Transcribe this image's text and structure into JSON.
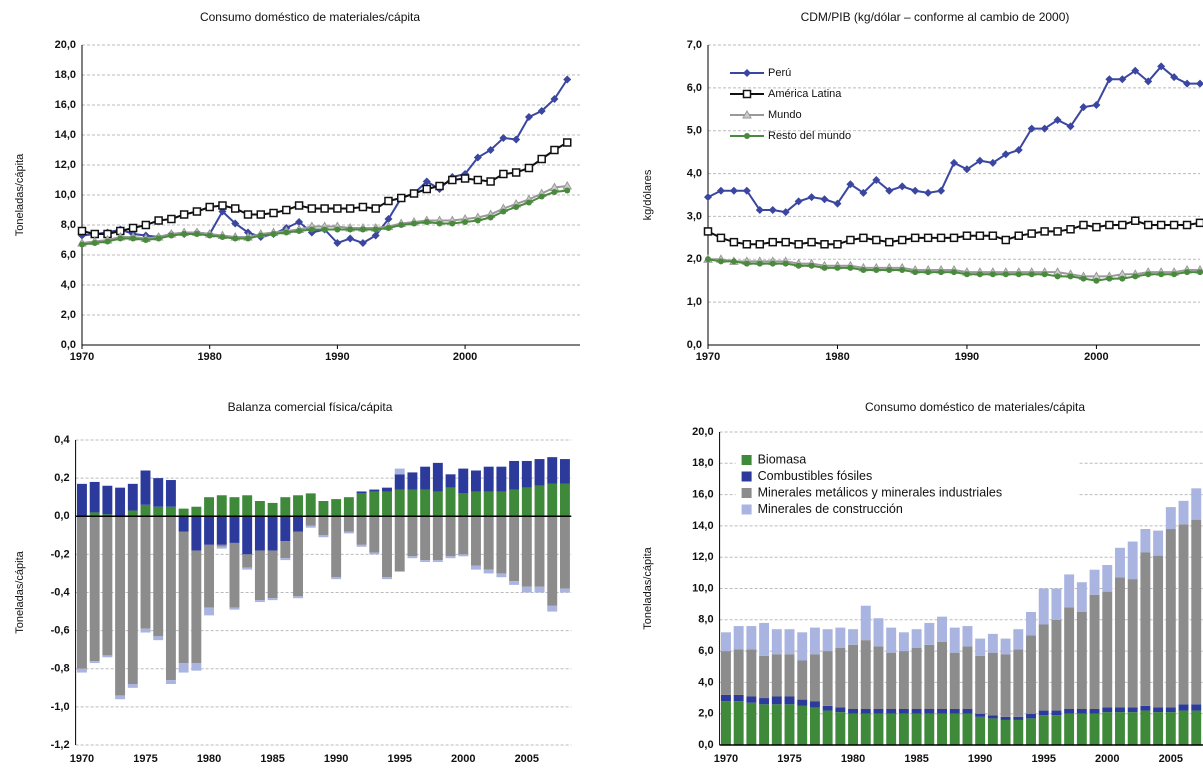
{
  "chart_data": [
    {
      "type": "line",
      "title": "Consumo doméstico de materiales/cápita",
      "y_label": "Toneladas/cápita",
      "x": [
        1970,
        1971,
        1972,
        1973,
        1974,
        1975,
        1976,
        1977,
        1978,
        1979,
        1980,
        1981,
        1982,
        1983,
        1984,
        1985,
        1986,
        1987,
        1988,
        1989,
        1990,
        1991,
        1992,
        1993,
        1994,
        1995,
        1996,
        1997,
        1998,
        1999,
        2000,
        2001,
        2002,
        2003,
        2004,
        2005,
        2006,
        2007,
        2008
      ],
      "xlim": [
        1970,
        2009
      ],
      "xticks": [
        1970,
        1980,
        1990,
        2000
      ],
      "ylim": [
        0,
        20
      ],
      "yticks": [
        {
          "value": 0,
          "label": "0,0"
        },
        {
          "value": 2,
          "label": "2,0"
        },
        {
          "value": 4,
          "label": "4,0"
        },
        {
          "value": 6,
          "label": "6,0"
        },
        {
          "value": 8,
          "label": "8,0"
        },
        {
          "value": 10,
          "label": "10,0"
        },
        {
          "value": 12,
          "label": "12,0"
        },
        {
          "value": 14,
          "label": "14,0"
        },
        {
          "value": 16,
          "label": "16,0"
        },
        {
          "value": 18,
          "label": "18,0"
        },
        {
          "value": 20,
          "label": "20,0"
        }
      ],
      "grid": true,
      "series": [
        {
          "color": "#3a46a0",
          "marker": "diamond",
          "values": [
            7.3,
            7.4,
            7.5,
            7.7,
            7.4,
            7.3,
            7.2,
            7.4,
            7.4,
            7.5,
            7.4,
            8.9,
            8.1,
            7.5,
            7.2,
            7.4,
            7.8,
            8.2,
            7.5,
            7.7,
            6.8,
            7.1,
            6.8,
            7.3,
            8.4,
            9.8,
            10.1,
            10.9,
            10.4,
            11.2,
            11.4,
            12.5,
            13.0,
            13.8,
            13.7,
            15.2,
            15.6,
            16.4,
            17.7
          ]
        },
        {
          "color": "#111111",
          "marker": "square",
          "values": [
            7.6,
            7.4,
            7.4,
            7.6,
            7.8,
            8.0,
            8.3,
            8.4,
            8.7,
            8.9,
            9.2,
            9.3,
            9.1,
            8.7,
            8.7,
            8.8,
            9.0,
            9.3,
            9.1,
            9.1,
            9.1,
            9.1,
            9.2,
            9.1,
            9.6,
            9.8,
            10.1,
            10.4,
            10.6,
            11.0,
            11.1,
            11.0,
            10.9,
            11.4,
            11.5,
            11.8,
            12.4,
            13.0,
            13.5
          ]
        },
        {
          "color": "#999999",
          "marker": "triangle",
          "values": [
            6.8,
            6.9,
            7.0,
            7.2,
            7.2,
            7.1,
            7.2,
            7.4,
            7.5,
            7.5,
            7.4,
            7.3,
            7.2,
            7.2,
            7.4,
            7.5,
            7.6,
            7.7,
            7.9,
            7.9,
            7.9,
            7.8,
            7.8,
            7.8,
            7.9,
            8.1,
            8.2,
            8.3,
            8.3,
            8.3,
            8.4,
            8.5,
            8.7,
            9.1,
            9.4,
            9.7,
            10.1,
            10.5,
            10.6
          ]
        },
        {
          "color": "#4a8a3c",
          "marker": "circle",
          "values": [
            6.7,
            6.8,
            6.9,
            7.1,
            7.1,
            7.0,
            7.1,
            7.3,
            7.4,
            7.4,
            7.3,
            7.2,
            7.1,
            7.1,
            7.3,
            7.4,
            7.5,
            7.6,
            7.7,
            7.7,
            7.7,
            7.7,
            7.7,
            7.7,
            7.8,
            8.0,
            8.1,
            8.2,
            8.1,
            8.1,
            8.2,
            8.3,
            8.5,
            8.9,
            9.2,
            9.5,
            9.9,
            10.2,
            10.3
          ]
        }
      ]
    },
    {
      "type": "line",
      "title": "CDM/PIB (kg/dólar – conforme al cambio de 2000)",
      "y_label": "kg/dólares",
      "x": [
        1970,
        1971,
        1972,
        1973,
        1974,
        1975,
        1976,
        1977,
        1978,
        1979,
        1980,
        1981,
        1982,
        1983,
        1984,
        1985,
        1986,
        1987,
        1988,
        1989,
        1990,
        1991,
        1992,
        1993,
        1994,
        1995,
        1996,
        1997,
        1998,
        1999,
        2000,
        2001,
        2002,
        2003,
        2004,
        2005,
        2006,
        2007,
        2008
      ],
      "xlim": [
        1970,
        2008
      ],
      "xticks": [
        1970,
        1980,
        1990,
        2000
      ],
      "ylim": [
        0,
        7
      ],
      "yticks": [
        {
          "value": 0,
          "label": "0,0"
        },
        {
          "value": 1,
          "label": "1,0"
        },
        {
          "value": 2,
          "label": "2,0"
        },
        {
          "value": 3,
          "label": "3,0"
        },
        {
          "value": 4,
          "label": "4,0"
        },
        {
          "value": 5,
          "label": "5,0"
        },
        {
          "value": 6,
          "label": "6,0"
        },
        {
          "value": 7,
          "label": "7,0"
        }
      ],
      "grid": true,
      "legend": "upper left",
      "series": [
        {
          "name": "Perú",
          "color": "#3a46a0",
          "marker": "diamond",
          "values": [
            3.45,
            3.6,
            3.6,
            3.6,
            3.15,
            3.15,
            3.1,
            3.35,
            3.45,
            3.4,
            3.3,
            3.75,
            3.55,
            3.85,
            3.6,
            3.7,
            3.6,
            3.55,
            3.6,
            4.25,
            4.1,
            4.3,
            4.25,
            4.45,
            4.55,
            5.05,
            5.05,
            5.25,
            5.1,
            5.55,
            5.6,
            6.2,
            6.2,
            6.4,
            6.15,
            6.5,
            6.25,
            6.1,
            6.1
          ]
        },
        {
          "name": "América Latina",
          "color": "#111111",
          "marker": "square",
          "values": [
            2.65,
            2.5,
            2.4,
            2.35,
            2.35,
            2.4,
            2.4,
            2.35,
            2.4,
            2.35,
            2.35,
            2.45,
            2.5,
            2.45,
            2.4,
            2.45,
            2.5,
            2.5,
            2.5,
            2.5,
            2.55,
            2.55,
            2.55,
            2.45,
            2.55,
            2.6,
            2.65,
            2.65,
            2.7,
            2.8,
            2.75,
            2.8,
            2.8,
            2.9,
            2.8,
            2.8,
            2.8,
            2.8,
            2.85
          ]
        },
        {
          "name": "Mundo",
          "color": "#999999",
          "marker": "triangle",
          "values": [
            2.0,
            2.0,
            1.95,
            1.95,
            1.95,
            1.95,
            1.95,
            1.9,
            1.9,
            1.85,
            1.85,
            1.85,
            1.8,
            1.8,
            1.8,
            1.8,
            1.75,
            1.75,
            1.75,
            1.75,
            1.7,
            1.7,
            1.7,
            1.7,
            1.7,
            1.7,
            1.7,
            1.7,
            1.65,
            1.6,
            1.6,
            1.6,
            1.65,
            1.65,
            1.7,
            1.7,
            1.7,
            1.75,
            1.75
          ]
        },
        {
          "name": "Resto del mundo",
          "color": "#4a8a3c",
          "marker": "circle",
          "values": [
            2.0,
            1.95,
            1.95,
            1.9,
            1.9,
            1.9,
            1.9,
            1.85,
            1.85,
            1.8,
            1.8,
            1.8,
            1.75,
            1.75,
            1.75,
            1.75,
            1.7,
            1.7,
            1.7,
            1.7,
            1.65,
            1.65,
            1.65,
            1.65,
            1.65,
            1.65,
            1.65,
            1.6,
            1.6,
            1.55,
            1.5,
            1.55,
            1.55,
            1.6,
            1.65,
            1.65,
            1.65,
            1.7,
            1.7
          ]
        }
      ]
    },
    {
      "type": "bar",
      "stacked": true,
      "title": "Balanza comercial física/cápita",
      "y_label": "Toneladas/cápita",
      "categories": [
        "1970",
        null,
        null,
        null,
        null,
        "1975",
        null,
        null,
        null,
        null,
        "1980",
        null,
        null,
        null,
        null,
        "1985",
        null,
        null,
        null,
        null,
        "1990",
        null,
        null,
        null,
        null,
        "1995",
        null,
        null,
        null,
        null,
        "2000",
        null,
        null,
        null,
        null,
        "2005",
        null,
        null,
        null
      ],
      "ylim": [
        -1.2,
        0.4
      ],
      "yticks": [
        {
          "value": -1.2,
          "label": "-1,2"
        },
        {
          "value": -1.0,
          "label": "-1,0"
        },
        {
          "value": -0.8,
          "label": "-0,8"
        },
        {
          "value": -0.6,
          "label": "-0,6"
        },
        {
          "value": -0.4,
          "label": "-0,4"
        },
        {
          "value": -0.2,
          "label": "-0,2"
        },
        {
          "value": 0,
          "label": "0,0"
        },
        {
          "value": 0.2,
          "label": "0,2"
        },
        {
          "value": 0.4,
          "label": "0,4"
        }
      ],
      "grid": true,
      "series": [
        {
          "color": "#3f8a3a",
          "values": [
            0.0,
            0.02,
            0.01,
            0.0,
            0.03,
            0.06,
            0.05,
            0.05,
            0.04,
            0.05,
            0.1,
            0.11,
            0.1,
            0.11,
            0.08,
            0.07,
            0.1,
            0.11,
            0.12,
            0.08,
            0.09,
            0.1,
            0.12,
            0.13,
            0.13,
            0.14,
            0.14,
            0.14,
            0.13,
            0.15,
            0.12,
            0.13,
            0.13,
            0.13,
            0.14,
            0.15,
            0.16,
            0.17,
            0.17
          ]
        },
        {
          "color": "#2c3a9c",
          "values": [
            0.17,
            0.16,
            0.15,
            0.15,
            0.14,
            0.18,
            0.15,
            0.14,
            -0.08,
            -0.18,
            -0.15,
            -0.15,
            -0.14,
            -0.2,
            -0.18,
            -0.18,
            -0.13,
            -0.08,
            0.0,
            0.0,
            0.0,
            0.0,
            0.01,
            0.01,
            0.02,
            0.08,
            0.09,
            0.12,
            0.15,
            0.07,
            0.13,
            0.11,
            0.13,
            0.13,
            0.15,
            0.14,
            0.14,
            0.14,
            0.13
          ]
        },
        {
          "color": "#8c8c8c",
          "values": [
            -0.8,
            -0.76,
            -0.73,
            -0.94,
            -0.88,
            -0.59,
            -0.63,
            -0.86,
            -0.69,
            -0.59,
            -0.33,
            -0.01,
            -0.34,
            -0.07,
            -0.26,
            -0.25,
            -0.09,
            -0.34,
            -0.05,
            -0.1,
            -0.32,
            -0.08,
            -0.15,
            -0.19,
            -0.32,
            -0.29,
            -0.21,
            -0.23,
            -0.23,
            -0.21,
            -0.2,
            -0.26,
            -0.28,
            -0.3,
            -0.34,
            -0.37,
            -0.37,
            -0.47,
            -0.38
          ]
        },
        {
          "color": "#a9b4e0",
          "values": [
            -0.02,
            -0.01,
            -0.01,
            -0.02,
            -0.02,
            -0.02,
            -0.02,
            -0.02,
            -0.05,
            -0.04,
            -0.04,
            -0.01,
            -0.01,
            -0.01,
            -0.01,
            -0.01,
            -0.01,
            -0.01,
            -0.01,
            -0.01,
            -0.01,
            -0.01,
            -0.01,
            -0.01,
            -0.01,
            0.03,
            -0.01,
            -0.01,
            -0.01,
            -0.01,
            -0.01,
            -0.02,
            -0.02,
            -0.02,
            -0.02,
            -0.03,
            -0.03,
            -0.03,
            -0.02
          ]
        }
      ]
    },
    {
      "type": "bar",
      "stacked": true,
      "title": "Consumo doméstico de materiales/cápita",
      "y_label": "Toneladas/cápita",
      "categories": [
        "1970",
        null,
        null,
        null,
        null,
        "1975",
        null,
        null,
        null,
        null,
        "1980",
        null,
        null,
        null,
        null,
        "1985",
        null,
        null,
        null,
        null,
        "1990",
        null,
        null,
        null,
        null,
        "1995",
        null,
        null,
        null,
        null,
        "2000",
        null,
        null,
        null,
        null,
        "2005",
        null,
        null,
        null
      ],
      "ylim": [
        0,
        20
      ],
      "yticks": [
        {
          "value": 0,
          "label": "0,0"
        },
        {
          "value": 2,
          "label": "2,0"
        },
        {
          "value": 4,
          "label": "4,0"
        },
        {
          "value": 6,
          "label": "6,0"
        },
        {
          "value": 8,
          "label": "8,0"
        },
        {
          "value": 10,
          "label": "10,0"
        },
        {
          "value": 12,
          "label": "12,0"
        },
        {
          "value": 14,
          "label": "14,0"
        },
        {
          "value": 16,
          "label": "16,0"
        },
        {
          "value": 18,
          "label": "18,0"
        },
        {
          "value": 20,
          "label": "20,0"
        }
      ],
      "grid": true,
      "legend": "upper left",
      "series": [
        {
          "name": "Biomasa",
          "color": "#3f8a3a",
          "values": [
            2.8,
            2.8,
            2.7,
            2.6,
            2.6,
            2.6,
            2.5,
            2.4,
            2.2,
            2.1,
            2.0,
            2.0,
            2.0,
            2.0,
            2.0,
            2.0,
            2.0,
            2.0,
            2.0,
            2.0,
            1.8,
            1.7,
            1.6,
            1.6,
            1.7,
            1.9,
            1.9,
            2.0,
            2.0,
            2.0,
            2.1,
            2.1,
            2.1,
            2.2,
            2.1,
            2.1,
            2.2,
            2.2,
            2.3
          ]
        },
        {
          "name": "Combustibles fósiles",
          "color": "#2c3a9c",
          "values": [
            0.4,
            0.4,
            0.4,
            0.4,
            0.5,
            0.5,
            0.4,
            0.4,
            0.3,
            0.3,
            0.3,
            0.3,
            0.3,
            0.3,
            0.3,
            0.3,
            0.3,
            0.3,
            0.3,
            0.3,
            0.2,
            0.2,
            0.2,
            0.2,
            0.3,
            0.3,
            0.3,
            0.3,
            0.3,
            0.3,
            0.3,
            0.3,
            0.3,
            0.3,
            0.3,
            0.3,
            0.4,
            0.4,
            0.4
          ]
        },
        {
          "name": "Minerales metálicos y minerales industriales",
          "color": "#8c8c8c",
          "values": [
            2.8,
            2.9,
            3.0,
            2.7,
            2.7,
            2.7,
            2.5,
            3.0,
            3.5,
            3.8,
            4.1,
            4.4,
            4.0,
            3.6,
            3.7,
            3.9,
            4.1,
            4.3,
            3.6,
            4.0,
            3.7,
            4.0,
            4.0,
            4.3,
            5.0,
            5.5,
            5.8,
            6.5,
            6.2,
            7.3,
            7.4,
            8.3,
            8.2,
            9.8,
            9.7,
            11.4,
            11.5,
            11.8,
            12.5
          ]
        },
        {
          "name": "Minerales de construcción",
          "color": "#a9b4e0",
          "values": [
            1.2,
            1.5,
            1.5,
            2.1,
            1.6,
            1.6,
            1.8,
            1.7,
            1.4,
            1.3,
            1.0,
            2.2,
            1.8,
            1.6,
            1.2,
            1.2,
            1.4,
            1.6,
            1.6,
            1.3,
            1.1,
            1.2,
            1.0,
            1.3,
            1.5,
            2.3,
            2.0,
            2.1,
            1.9,
            1.6,
            1.7,
            1.9,
            2.4,
            1.5,
            1.6,
            1.4,
            1.5,
            2.0,
            2.6
          ]
        }
      ]
    }
  ]
}
